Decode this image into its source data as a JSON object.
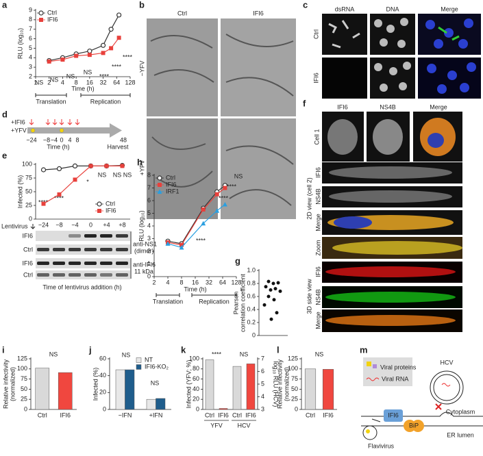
{
  "figure": {
    "letters": [
      "a",
      "b",
      "c",
      "d",
      "e",
      "f",
      "g",
      "h",
      "i",
      "j",
      "k",
      "l",
      "m"
    ],
    "b": {
      "columns": [
        "Ctrl",
        "IFI6"
      ],
      "rows": [
        "−YFV",
        "+YFV"
      ]
    },
    "c": {
      "columns": [
        "dsRNA",
        "DNA",
        "Merge"
      ],
      "rows": [
        "Ctrl",
        "IFI6"
      ]
    },
    "d": {
      "treatments": [
        "+IFI6",
        "+YFV"
      ],
      "times": [
        "−24",
        "−8",
        "−4",
        "0",
        "4",
        "8",
        "48"
      ],
      "xlabel": "Time (h)",
      "end": "Harvest"
    },
    "e_blot": {
      "leader": "Lentivirus",
      "rows": [
        "IFI6",
        "Ctrl",
        "IFI6",
        "Ctrl"
      ],
      "antibodies": [
        "anti-NS1",
        "(dimer)",
        "anti-IFI6",
        "11 kDa"
      ],
      "xlabel": "Time of lentivirus addition (h)"
    },
    "f": {
      "columns": [
        "IFI6",
        "NS4B",
        "Merge"
      ],
      "cell1": "Cell 1",
      "rows": [
        "IFI6",
        "NS4B",
        "Merge",
        "Zoom",
        "IFI6",
        "NS4B",
        "Merge"
      ],
      "groups": [
        "2D view (cell 2)",
        "3D side view"
      ]
    },
    "m": {
      "legend": [
        "Viral proteins",
        "Viral RNA"
      ],
      "labels": [
        "HCV",
        "Cytoplasm",
        "IFI6",
        "BiP",
        "Flavivirus",
        "ER lumen"
      ]
    }
  },
  "chart_data": [
    {
      "type": "line",
      "xlabel": "Time (h)",
      "ylabel": [
        "RLU (log₁₀)"
      ],
      "xlog": true,
      "xlim": [
        1,
        128
      ],
      "xticks": [
        1,
        2,
        4,
        8,
        16,
        32,
        64,
        128
      ],
      "ylim": [
        2,
        9
      ],
      "yticks": [
        2,
        3,
        4,
        5,
        6,
        7,
        8,
        9
      ],
      "x": [
        2,
        4,
        8,
        16,
        32,
        48,
        72
      ],
      "series": [
        {
          "name": "Ctrl",
          "color": "#333333",
          "marker": "open-circle",
          "values": [
            3.7,
            4.0,
            4.4,
            4.7,
            5.3,
            7.0,
            8.5
          ]
        },
        {
          "name": "IFI6",
          "color": "#e8413c",
          "marker": "square",
          "values": [
            3.6,
            3.8,
            4.2,
            4.3,
            4.5,
            5.0,
            6.1
          ]
        }
      ],
      "annotations": [
        "NS",
        "NS",
        "NS",
        "NS",
        "****",
        "****",
        "****"
      ],
      "phases": [
        "Translation",
        "Replication"
      ],
      "legend": "upper left"
    },
    {
      "type": "line",
      "ylabel": [
        "Infected (%)"
      ],
      "categories": [
        "−24",
        "−8",
        "−4",
        "0",
        "+4",
        "+8"
      ],
      "ylim": [
        0,
        100
      ],
      "yticks": [
        0,
        25,
        50,
        75,
        100
      ],
      "series": [
        {
          "name": "Ctrl",
          "color": "#333333",
          "marker": "open-circle",
          "values": [
            90,
            92,
            97,
            97,
            97,
            98
          ]
        },
        {
          "name": "IFI6",
          "color": "#e8413c",
          "marker": "square",
          "values": [
            28,
            45,
            72,
            97,
            97,
            97
          ]
        }
      ],
      "annotations": [
        "****",
        "****",
        "*",
        "NS",
        "NS",
        "NS"
      ],
      "legend": "lower right"
    },
    {
      "type": "line",
      "xlabel": "Time (h)",
      "ylabel": [
        "RLU (log₁₀)"
      ],
      "xlog": true,
      "xlim": [
        2,
        128
      ],
      "xticks": [
        2,
        4,
        8,
        16,
        32,
        64,
        128
      ],
      "ylim": [
        0,
        8
      ],
      "yticks": [
        0,
        1,
        2,
        3,
        4,
        5,
        6,
        7,
        8
      ],
      "x": [
        4,
        8,
        24,
        48,
        72
      ],
      "series": [
        {
          "name": "Ctrl",
          "color": "#333333",
          "marker": "open-circle",
          "values": [
            2.8,
            2.6,
            5.4,
            6.7,
            7.2
          ]
        },
        {
          "name": "IFI6",
          "color": "#e8413c",
          "marker": "square",
          "values": [
            2.7,
            2.5,
            5.3,
            6.5,
            7.0
          ]
        },
        {
          "name": "IRF1",
          "color": "#2a9fe0",
          "marker": "triangle",
          "values": [
            2.6,
            2.3,
            4.2,
            5.2,
            5.7
          ]
        }
      ],
      "annotations": [
        "NS",
        "****",
        "****",
        "****"
      ],
      "phases": [
        "Translation",
        "Replication"
      ],
      "legend": "upper left"
    },
    {
      "type": "scatter",
      "ylabel": [
        "Pearson",
        "correlation coefficient"
      ],
      "ylim": [
        0,
        1
      ],
      "yticks": [
        0,
        0.2,
        0.4,
        0.6,
        0.8,
        {
          "value": 1,
          "label": "1.0"
        }
      ],
      "color": "#111111",
      "values": [
        0.83,
        0.8,
        0.81,
        0.75,
        0.72,
        0.7,
        0.68,
        0.6,
        0.55,
        0.47,
        0.35,
        0.25
      ]
    },
    {
      "type": "bar",
      "ylabel": [
        "Relative infectivity",
        "(normalized)"
      ],
      "categories": [
        "Ctrl",
        "IFI6"
      ],
      "values": [
        102,
        91
      ],
      "colors": [
        "#d9d9d9",
        "#f0473f"
      ],
      "ylim": [
        0,
        125
      ],
      "yticks": [
        0,
        25,
        50,
        75,
        100,
        125
      ],
      "annotations": [
        "NS"
      ]
    },
    {
      "type": "bar",
      "ylabel": [
        "Infected (%)"
      ],
      "categories": [
        "−IFN",
        "+IFN"
      ],
      "series": [
        {
          "name": "NT",
          "color": "#e8e8e8",
          "values": [
            47,
            12
          ]
        },
        {
          "name": "IFI6-KO₂",
          "color": "#1f5d8c",
          "values": [
            47,
            13
          ]
        }
      ],
      "ylim": [
        0,
        60
      ],
      "yticks": [
        0,
        20,
        40,
        60
      ],
      "annotations": [
        "NS",
        "NS"
      ],
      "legend": "upper right"
    },
    {
      "type": "bar",
      "ylabel": [
        "Infected (YFV; %)"
      ],
      "y2label": [
        "log₁₀ RLU (HCV)"
      ],
      "categories": [
        "Ctrl",
        "IFI6",
        "Ctrl",
        "IFI6"
      ],
      "colors": [
        "#d9d9d9",
        "#f0473f",
        "#d9d9d9",
        "#f0473f"
      ],
      "series": [
        {
          "name": "YFV",
          "values": [
            98,
            2,
            null,
            null
          ]
        },
        {
          "name": "HCV",
          "axis": "y2",
          "values": [
            null,
            null,
            6.4,
            6.6
          ]
        }
      ],
      "ylim": [
        0,
        100
      ],
      "yticks": [
        0,
        20,
        40,
        60,
        80,
        100
      ],
      "y2lim": [
        3,
        7
      ],
      "y2ticks": [
        3,
        4,
        5,
        6,
        7
      ],
      "annotations": [
        "****",
        "NS"
      ]
    },
    {
      "type": "bar",
      "ylabel": [
        "Relative infectivity",
        "(normalized)"
      ],
      "categories": [
        "Ctrl",
        "IFI6"
      ],
      "values": [
        100,
        99
      ],
      "colors": [
        "#d9d9d9",
        "#f0473f"
      ],
      "ylim": [
        0,
        125
      ],
      "yticks": [
        0,
        25,
        50,
        75,
        100,
        125
      ],
      "annotations": [
        "NS"
      ]
    }
  ]
}
